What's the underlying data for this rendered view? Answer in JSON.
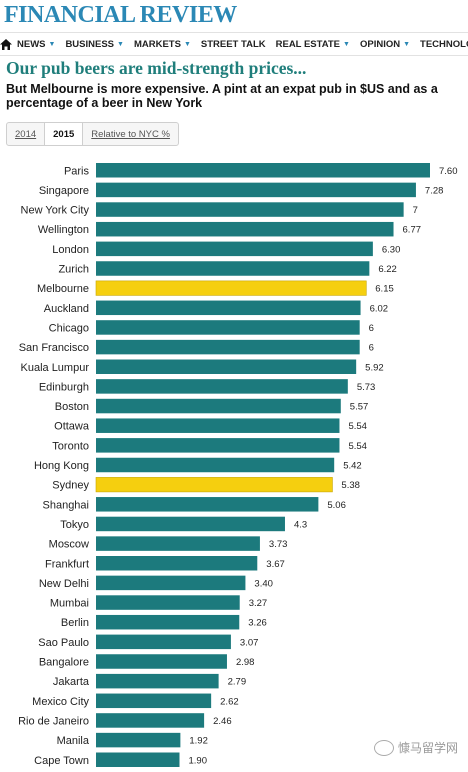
{
  "masthead": {
    "title": "FINANCIAL REVIEW"
  },
  "nav": {
    "items": [
      {
        "label": "NEWS"
      },
      {
        "label": "BUSINESS"
      },
      {
        "label": "MARKETS"
      },
      {
        "label": "STREET TALK"
      },
      {
        "label": "REAL ESTATE"
      },
      {
        "label": "OPINION"
      },
      {
        "label": "TECHNOLOGY"
      }
    ],
    "accent_color": "#2b88b5"
  },
  "headline": "Our pub beers are mid-strength prices...",
  "subheadline": "But Melbourne is more expensive. A pint at an expat pub in $US and as a percentage of a beer in New York",
  "tabs": [
    {
      "label": "2014",
      "active": false
    },
    {
      "label": "2015",
      "active": true
    },
    {
      "label": "Relative to NYC %",
      "active": false
    }
  ],
  "watermark": {
    "text": "慷马留学网"
  },
  "chart_data": {
    "type": "bar",
    "orientation": "horizontal",
    "categories": [
      "Paris",
      "Singapore",
      "New York City",
      "Wellington",
      "London",
      "Zurich",
      "Melbourne",
      "Auckland",
      "Chicago",
      "San Francisco",
      "Kuala Lumpur",
      "Edinburgh",
      "Boston",
      "Ottawa",
      "Toronto",
      "Hong Kong",
      "Sydney",
      "Shanghai",
      "Tokyo",
      "Moscow",
      "Frankfurt",
      "New Delhi",
      "Mumbai",
      "Berlin",
      "Sao Paulo",
      "Bangalore",
      "Jakarta",
      "Mexico City",
      "Rio de Janeiro",
      "Manila",
      "Cape Town"
    ],
    "values": [
      7.6,
      7.28,
      7,
      6.77,
      6.3,
      6.22,
      6.15,
      6.02,
      6,
      6,
      5.92,
      5.73,
      5.57,
      5.54,
      5.54,
      5.42,
      5.38,
      5.06,
      4.3,
      3.73,
      3.67,
      3.4,
      3.27,
      3.26,
      3.07,
      2.98,
      2.79,
      2.62,
      2.46,
      1.92,
      1.9
    ],
    "value_labels": [
      "7.60",
      "7.28",
      "7",
      "6.77",
      "6.30",
      "6.22",
      "6.15",
      "6.02",
      "6",
      "6",
      "5.92",
      "5.73",
      "5.57",
      "5.54",
      "5.54",
      "5.42",
      "5.38",
      "5.06",
      "4.3",
      "3.73",
      "3.67",
      "3.40",
      "3.27",
      "3.26",
      "3.07",
      "2.98",
      "2.79",
      "2.62",
      "2.46",
      "1.92",
      "1.90"
    ],
    "highlighted": [
      "Melbourne",
      "Sydney"
    ],
    "colors": {
      "default": "#1c7a7d",
      "highlight": "#f5cf0f",
      "highlight_edge": "#c7a600"
    },
    "xlim": [
      0,
      7.6
    ]
  }
}
